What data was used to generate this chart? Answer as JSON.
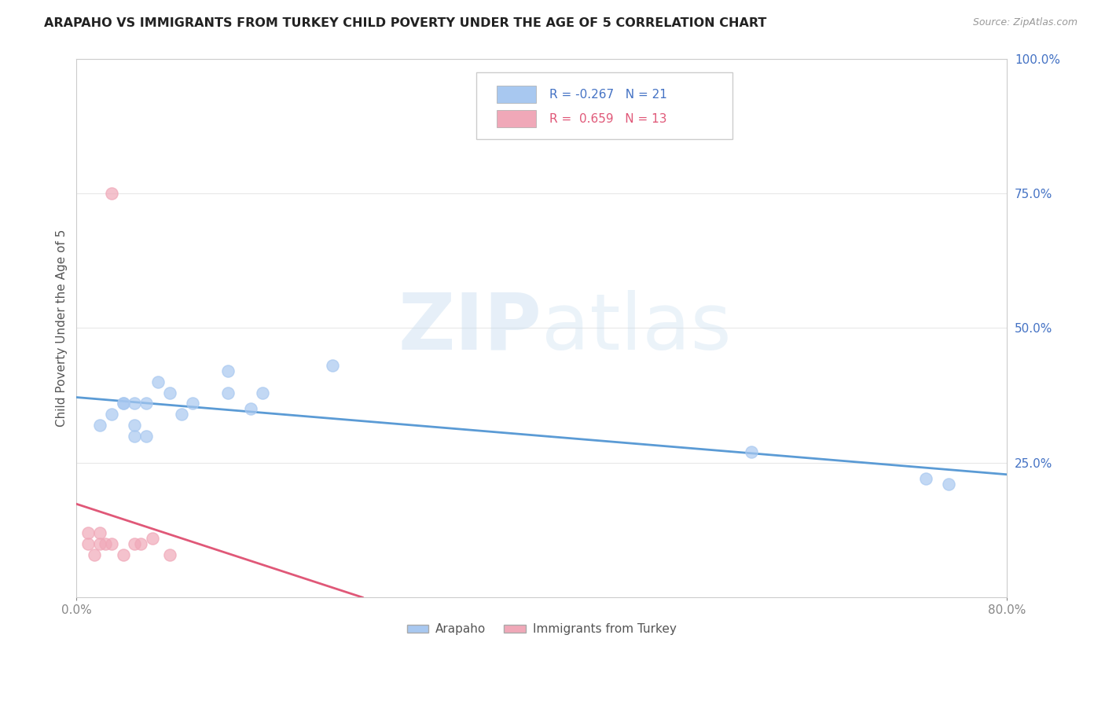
{
  "title": "ARAPAHO VS IMMIGRANTS FROM TURKEY CHILD POVERTY UNDER THE AGE OF 5 CORRELATION CHART",
  "source": "Source: ZipAtlas.com",
  "ylabel": "Child Poverty Under the Age of 5",
  "xlim": [
    0.0,
    0.8
  ],
  "ylim": [
    0.0,
    1.0
  ],
  "arapaho_x": [
    0.02,
    0.03,
    0.04,
    0.04,
    0.05,
    0.05,
    0.05,
    0.06,
    0.06,
    0.07,
    0.08,
    0.09,
    0.1,
    0.13,
    0.13,
    0.15,
    0.16,
    0.22,
    0.58,
    0.73,
    0.75
  ],
  "arapaho_y": [
    0.32,
    0.34,
    0.36,
    0.36,
    0.3,
    0.32,
    0.36,
    0.3,
    0.36,
    0.4,
    0.38,
    0.34,
    0.36,
    0.38,
    0.42,
    0.35,
    0.38,
    0.43,
    0.27,
    0.22,
    0.21
  ],
  "turkey_x": [
    0.01,
    0.01,
    0.015,
    0.02,
    0.02,
    0.025,
    0.03,
    0.03,
    0.04,
    0.05,
    0.055,
    0.065,
    0.08
  ],
  "turkey_y": [
    0.1,
    0.12,
    0.08,
    0.1,
    0.12,
    0.1,
    0.1,
    0.75,
    0.08,
    0.1,
    0.1,
    0.11,
    0.08
  ],
  "arapaho_color": "#a8c8f0",
  "turkey_color": "#f0a8b8",
  "arapaho_line_color": "#5b9bd5",
  "turkey_line_color": "#e05878",
  "R_arapaho": -0.267,
  "N_arapaho": 21,
  "R_turkey": 0.659,
  "N_turkey": 13,
  "watermark_zip": "ZIP",
  "watermark_atlas": "atlas",
  "legend_labels": [
    "Arapaho",
    "Immigrants from Turkey"
  ],
  "background_color": "#ffffff",
  "grid_color": "#e8e8e8",
  "ytick_values": [
    0.25,
    0.5,
    0.75,
    1.0
  ],
  "ytick_labels": [
    "25.0%",
    "50.0%",
    "75.0%",
    "100.0%"
  ],
  "xtick_values": [
    0.0,
    0.8
  ],
  "xtick_labels": [
    "0.0%",
    "80.0%"
  ]
}
